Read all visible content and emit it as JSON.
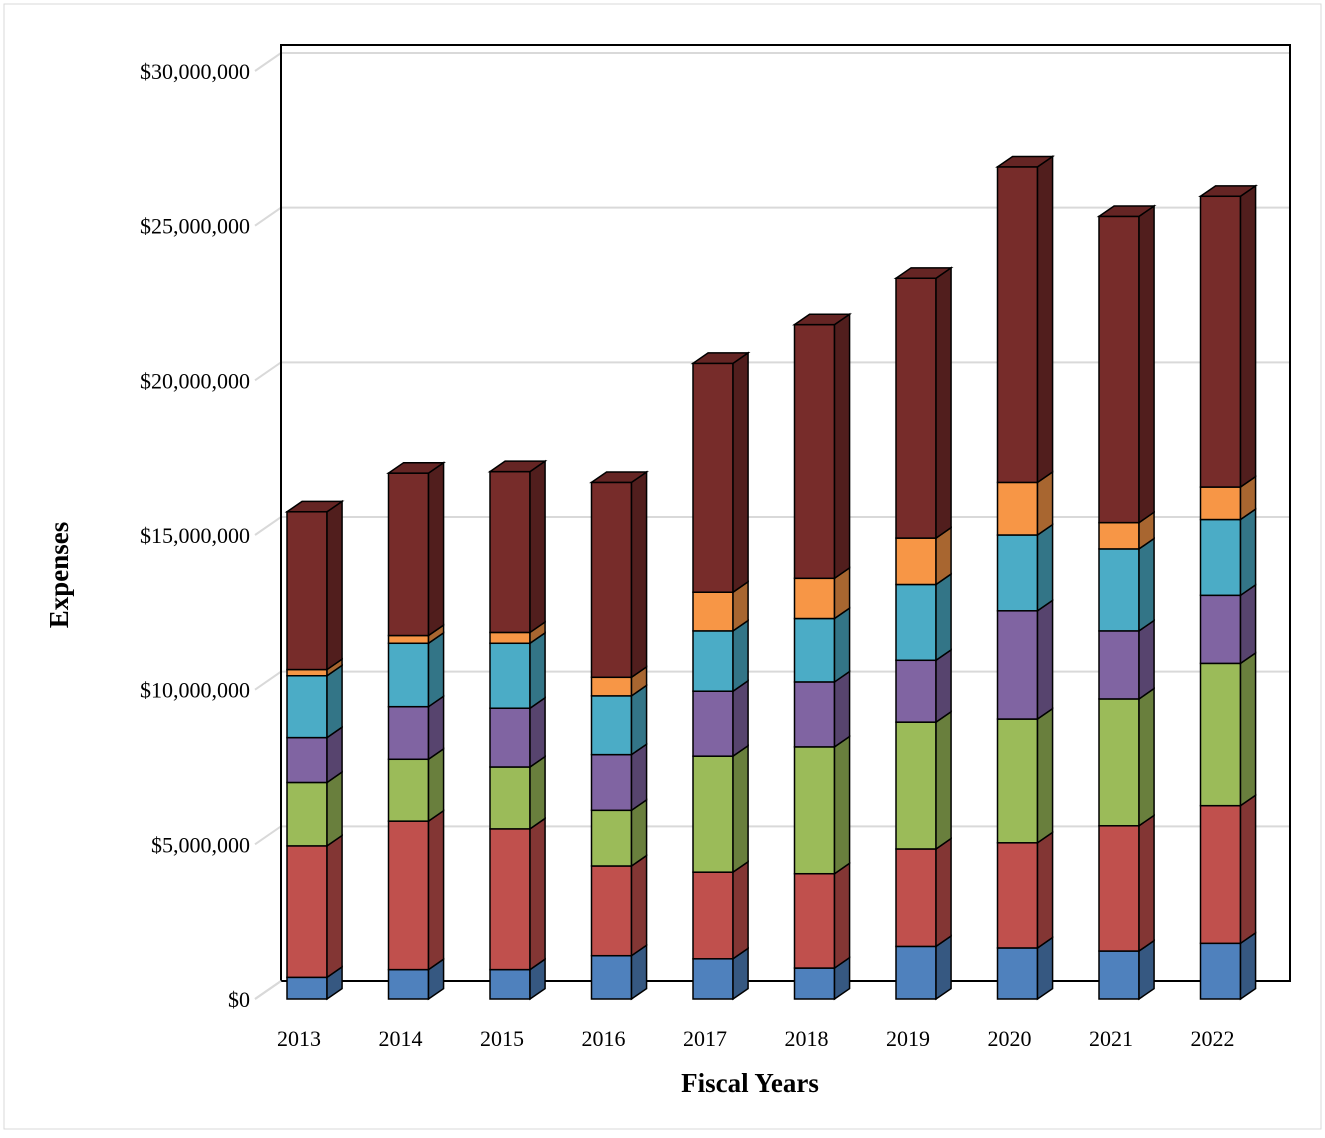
{
  "chart_data": {
    "type": "bar",
    "stacked": true,
    "three_d": true,
    "xlabel": "Fiscal Years",
    "ylabel": "Expenses",
    "ylim": [
      0,
      30000000
    ],
    "yticks": [
      0,
      5000000,
      10000000,
      15000000,
      20000000,
      25000000,
      30000000
    ],
    "ytick_labels": [
      "$0",
      "$5,000,000",
      "$10,000,000",
      "$15,000,000",
      "$20,000,000",
      "$25,000,000",
      "$30,000,000"
    ],
    "grid": true,
    "legend": "none",
    "categories": [
      "2013",
      "2014",
      "2015",
      "2016",
      "2017",
      "2018",
      "2019",
      "2020",
      "2021",
      "2022"
    ],
    "series": [
      {
        "color": "#4F81BD",
        "values": [
          700000,
          950000,
          950000,
          1400000,
          1300000,
          1000000,
          1700000,
          1650000,
          1550000,
          1800000
        ]
      },
      {
        "color": "#C0504D",
        "values": [
          4250000,
          4800000,
          4550000,
          2900000,
          2800000,
          3050000,
          3150000,
          3400000,
          4050000,
          4450000
        ]
      },
      {
        "color": "#9BBB59",
        "values": [
          2050000,
          2000000,
          2000000,
          1800000,
          3750000,
          4100000,
          4100000,
          4000000,
          4100000,
          4600000
        ]
      },
      {
        "color": "#8064A2",
        "values": [
          1450000,
          1700000,
          1900000,
          1800000,
          2100000,
          2100000,
          2000000,
          3500000,
          2200000,
          2200000
        ]
      },
      {
        "color": "#4BACC6",
        "values": [
          2000000,
          2050000,
          2100000,
          1900000,
          1950000,
          2050000,
          2450000,
          2450000,
          2650000,
          2450000
        ]
      },
      {
        "color": "#F79646",
        "values": [
          200000,
          250000,
          350000,
          600000,
          1250000,
          1300000,
          1500000,
          1700000,
          850000,
          1050000
        ]
      },
      {
        "color": "#772C2A",
        "values": [
          5100000,
          5250000,
          5200000,
          6300000,
          7400000,
          8200000,
          8400000,
          10200000,
          9900000,
          9400000
        ]
      }
    ]
  }
}
